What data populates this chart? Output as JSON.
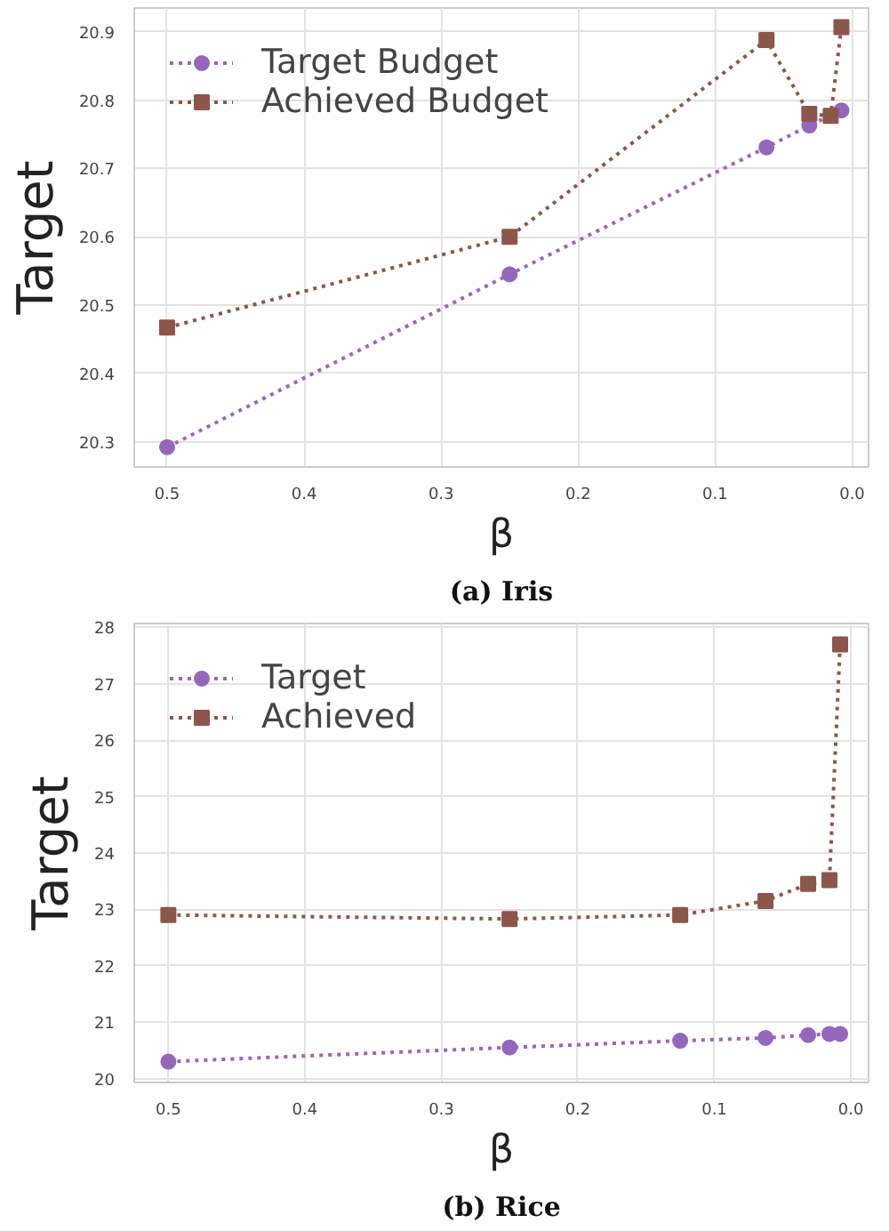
{
  "chart_data": [
    {
      "type": "line",
      "xlabel": "β",
      "ylabel": "Target",
      "annotations": [
        "(a) Iris"
      ],
      "x": [
        0.5,
        0.25,
        0.0625,
        0.03125,
        0.015625,
        0.0078125
      ],
      "series": [
        {
          "name": "Target Budget",
          "color": "#9467bd",
          "marker": "circle",
          "values": [
            20.292,
            20.545,
            20.731,
            20.763,
            null,
            20.785
          ]
        },
        {
          "name": "Achieved Budget",
          "color": "#8c564b",
          "marker": "square",
          "values": [
            20.467,
            20.6,
            20.888,
            20.78,
            20.777,
            20.907
          ]
        }
      ],
      "xlim": [
        0.524,
        -0.012
      ],
      "ylim": [
        20.263,
        20.935
      ],
      "xticks": [
        {
          "value": 0.5,
          "label": "0.5"
        },
        {
          "value": 0.4,
          "label": "0.4"
        },
        {
          "value": 0.3,
          "label": "0.3"
        },
        {
          "value": 0.2,
          "label": "0.2"
        },
        {
          "value": 0.1,
          "label": "0.1"
        },
        {
          "value": 0,
          "label": "0.0"
        }
      ],
      "yticks": [
        20.3,
        20.4,
        20.5,
        20.6,
        20.7,
        20.8,
        20.9
      ],
      "grid": true,
      "legend": "top left",
      "line_style": "dotted"
    },
    {
      "type": "line",
      "xlabel": "β",
      "ylabel": "Target",
      "annotations": [
        "(b) Rice"
      ],
      "x": [
        0.5,
        0.25,
        0.125,
        0.0625,
        0.03125,
        0.015625,
        0.0078125
      ],
      "series": [
        {
          "name": "Target",
          "color": "#9467bd",
          "marker": "circle",
          "values": [
            20.3,
            20.55,
            20.67,
            20.72,
            20.77,
            20.79,
            20.79
          ]
        },
        {
          "name": "Achieved",
          "color": "#8c564b",
          "marker": "square",
          "values": [
            22.9,
            22.83,
            22.9,
            23.15,
            23.45,
            23.52,
            27.7
          ]
        }
      ],
      "xlim": [
        0.525,
        -0.013
      ],
      "ylim": [
        19.93,
        28.07
      ],
      "xticks": [
        {
          "value": 0.5,
          "label": "0.5"
        },
        {
          "value": 0.4,
          "label": "0.4"
        },
        {
          "value": 0.3,
          "label": "0.3"
        },
        {
          "value": 0.2,
          "label": "0.2"
        },
        {
          "value": 0.1,
          "label": "0.1"
        },
        {
          "value": 0,
          "label": "0.0"
        }
      ],
      "yticks": [
        20,
        21,
        22,
        23,
        24,
        25,
        26,
        27,
        28
      ],
      "grid": true,
      "legend": "top left",
      "line_style": "dotted"
    }
  ]
}
